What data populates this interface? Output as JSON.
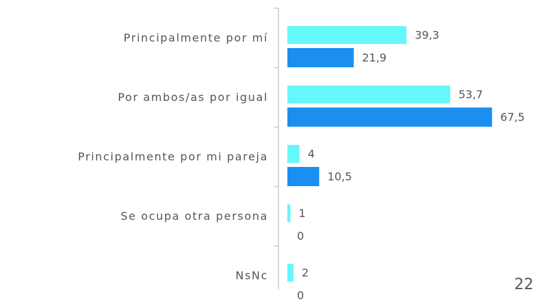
{
  "chart_data": {
    "type": "hbar",
    "categories": [
      "Principalmente por mí",
      "Por ambos/as por igual",
      "Principalmente por mi pareja",
      "Se ocupa otra persona",
      "NsNc"
    ],
    "series": [
      {
        "color": "#66f7fa",
        "values": [
          39.3,
          53.7,
          4,
          1,
          2
        ],
        "value_labels": [
          "39,3",
          "53,7",
          "4",
          "1",
          "2"
        ]
      },
      {
        "color": "#1a8ff0",
        "values": [
          21.9,
          67.5,
          10.5,
          0,
          0
        ],
        "value_labels": [
          "21,9",
          "67,5",
          "10,5",
          "0",
          "0"
        ]
      }
    ]
  },
  "page_number": "22"
}
